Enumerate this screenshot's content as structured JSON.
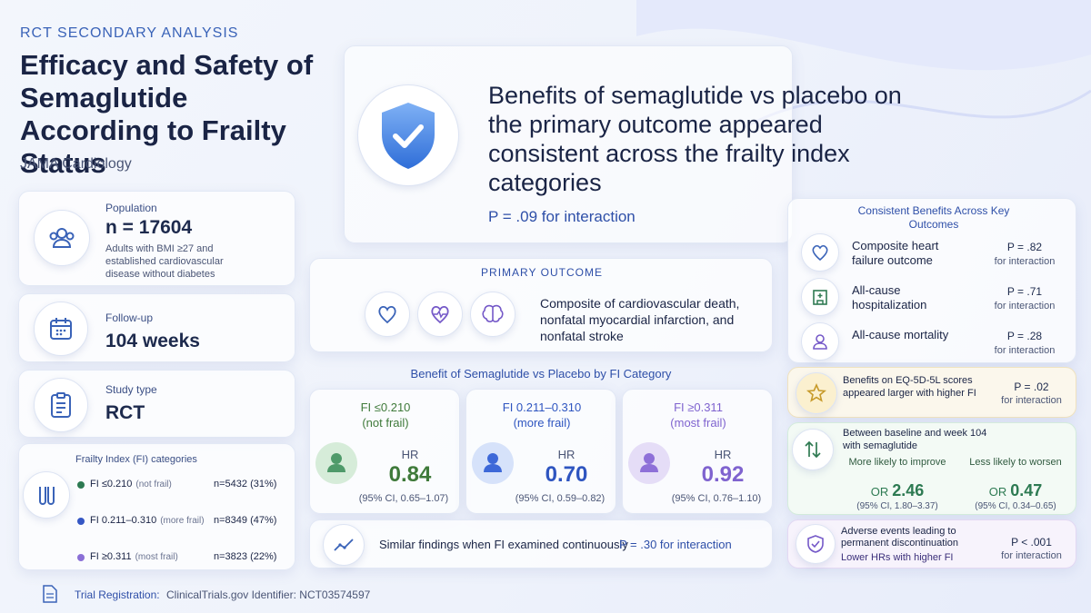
{
  "header": {
    "kicker": "RCT SECONDARY ANALYSIS",
    "title": "Efficacy and Safety of Semaglutide According to Frailty Status",
    "journal": "JAMA Cardiology"
  },
  "hero": {
    "statement": "Benefits of semaglutide vs placebo on the primary outcome appeared consistent across the frailty index categories",
    "p_value": "P = .09 for interaction"
  },
  "population": {
    "label": "Population",
    "value": "n = 17604",
    "description": "Adults with BMI ≥27 and established cardiovascular disease without diabetes"
  },
  "follow_up": {
    "label": "Follow-up",
    "value": "104 weeks"
  },
  "study_type": {
    "label": "Study type",
    "value": "RCT"
  },
  "frailty_categories": {
    "title": "Frailty Index (FI) categories",
    "items": [
      {
        "label": "FI ≤0.210",
        "note": "(not frail)",
        "count": "n=5432 (31%)"
      },
      {
        "label": "FI 0.211–0.310",
        "note": "(more frail)",
        "count": "n=8349 (47%)"
      },
      {
        "label": "FI ≥0.311",
        "note": "(most frail)",
        "count": "n=3823 (22%)"
      }
    ]
  },
  "primary_outcome": {
    "title": "PRIMARY OUTCOME",
    "description": "Composite of cardiovascular death, nonfatal myocardial infarction, and nonfatal stroke"
  },
  "fi_benefit": {
    "title": "Benefit of Semaglutide vs Placebo by FI Category",
    "groups": [
      {
        "label": "FI ≤0.210",
        "note": "(not frail)",
        "hr_label": "HR",
        "hr": "0.84",
        "ci": "(95% CI, 0.65–1.07)"
      },
      {
        "label": "FI 0.211–0.310",
        "note": "(more frail)",
        "hr_label": "HR",
        "hr": "0.70",
        "ci": "(95% CI, 0.59–0.82)"
      },
      {
        "label": "FI ≥0.311",
        "note": "(most frail)",
        "hr_label": "HR",
        "hr": "0.92",
        "ci": "(95% CI, 0.76–1.10)"
      }
    ]
  },
  "continuous": {
    "text": "Similar findings when FI examined continuously",
    "p_value": "P = .30 for interaction"
  },
  "key_outcomes": {
    "title": "Consistent Benefits Across Key Outcomes",
    "items": [
      {
        "label": "Composite heart failure outcome",
        "p": "P = .82",
        "p_note": "for interaction"
      },
      {
        "label": "All-cause hospitalization",
        "p": "P = .71",
        "p_note": "for interaction"
      },
      {
        "label": "All-cause mortality",
        "p": "P = .28",
        "p_note": "for interaction"
      }
    ]
  },
  "eq5d": {
    "text": "Benefits on EQ-5D-5L scores appeared larger with higher FI",
    "p": "P = .02",
    "p_note": "for interaction"
  },
  "change": {
    "title": "Between baseline and week 104 with semaglutide",
    "items": [
      {
        "label": "More likely to improve",
        "or_label": "OR",
        "or": "2.46",
        "ci": "(95% CI, 1.80–3.37)"
      },
      {
        "label": "Less likely to worsen",
        "or_label": "OR",
        "or": "0.47",
        "ci": "(95% CI, 0.34–0.65)"
      }
    ]
  },
  "adverse": {
    "title": "Adverse events leading to permanent discontinuation",
    "note": "Lower HRs with higher FI",
    "p": "P < .001",
    "p_note": "for interaction"
  },
  "footer": {
    "label": "Trial Registration:",
    "text": "ClinicalTrials.gov Identifier: NCT03574597"
  }
}
